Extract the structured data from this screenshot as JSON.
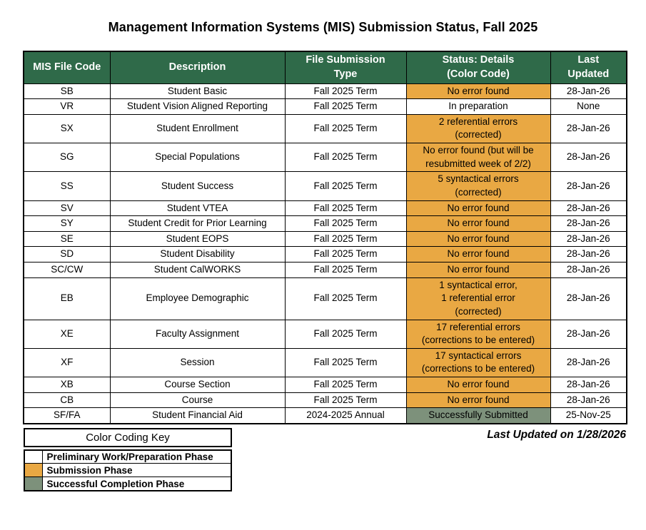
{
  "title": "Management Information Systems (MIS) Submission Status, Fall 2025",
  "colors": {
    "header_green": "#2F6A49",
    "submission_orange": "#E9A843",
    "completion_green": "#7D917B",
    "preparation_white": "#FFFFFF"
  },
  "table": {
    "columns": [
      "MIS File Code",
      "Description",
      "File Submission\nType",
      "Status: Details\n(Color Code)",
      "Last\nUpdated"
    ],
    "rows": [
      {
        "code": "SB",
        "description": "Student Basic",
        "submission_type": "Fall 2025 Term",
        "status": "No error found",
        "status_phase": "submission",
        "last_updated": "28-Jan-26"
      },
      {
        "code": "VR",
        "description": "Student Vision Aligned Reporting",
        "submission_type": "Fall 2025 Term",
        "status": "In preparation",
        "status_phase": "preparation",
        "last_updated": "None"
      },
      {
        "code": "SX",
        "description": "Student Enrollment",
        "submission_type": "Fall 2025 Term",
        "status": "2 referential errors\n(corrected)",
        "status_phase": "submission",
        "last_updated": "28-Jan-26"
      },
      {
        "code": "SG",
        "description": "Special Populations",
        "submission_type": "Fall 2025 Term",
        "status": "No error found (but will be resubmitted week of 2/2)",
        "status_phase": "submission",
        "last_updated": "28-Jan-26"
      },
      {
        "code": "SS",
        "description": "Student Success",
        "submission_type": "Fall 2025 Term",
        "status": "5 syntactical errors\n(corrected)",
        "status_phase": "submission",
        "last_updated": "28-Jan-26"
      },
      {
        "code": "SV",
        "description": "Student VTEA",
        "submission_type": "Fall 2025 Term",
        "status": "No error found",
        "status_phase": "submission",
        "last_updated": "28-Jan-26"
      },
      {
        "code": "SY",
        "description": "Student Credit for Prior Learning",
        "submission_type": "Fall 2025 Term",
        "status": "No error found",
        "status_phase": "submission",
        "last_updated": "28-Jan-26"
      },
      {
        "code": "SE",
        "description": "Student EOPS",
        "submission_type": "Fall 2025 Term",
        "status": "No error found",
        "status_phase": "submission",
        "last_updated": "28-Jan-26"
      },
      {
        "code": "SD",
        "description": "Student Disability",
        "submission_type": "Fall 2025 Term",
        "status": "No error found",
        "status_phase": "submission",
        "last_updated": "28-Jan-26"
      },
      {
        "code": "SC/CW",
        "description": "Student CalWORKS",
        "submission_type": "Fall 2025 Term",
        "status": "No error found",
        "status_phase": "submission",
        "last_updated": "28-Jan-26"
      },
      {
        "code": "EB",
        "description": "Employee Demographic",
        "submission_type": "Fall 2025 Term",
        "status": "1 syntactical error,\n1 referential error\n(corrected)",
        "status_phase": "submission",
        "last_updated": "28-Jan-26"
      },
      {
        "code": "XE",
        "description": "Faculty Assignment",
        "submission_type": "Fall 2025 Term",
        "status": "17 referential errors\n(corrections to be entered)",
        "status_phase": "submission",
        "last_updated": "28-Jan-26"
      },
      {
        "code": "XF",
        "description": "Session",
        "submission_type": "Fall 2025 Term",
        "status": "17 syntactical errors\n(corrections to be entered)",
        "status_phase": "submission",
        "last_updated": "28-Jan-26"
      },
      {
        "code": "XB",
        "description": "Course Section",
        "submission_type": "Fall 2025 Term",
        "status": "No error found",
        "status_phase": "submission",
        "last_updated": "28-Jan-26"
      },
      {
        "code": "CB",
        "description": "Course",
        "submission_type": "Fall 2025 Term",
        "status": "No error found",
        "status_phase": "submission",
        "last_updated": "28-Jan-26"
      },
      {
        "code": "SF/FA",
        "description": "Student Financial Aid",
        "submission_type": "2024-2025 Annual",
        "status": "Successfully Submitted",
        "status_phase": "completion",
        "last_updated": "25-Nov-25"
      }
    ]
  },
  "footer_note": "Last Updated on 1/28/2026",
  "color_key": {
    "title": "Color Coding Key",
    "entries": [
      {
        "label": "Preliminary Work/Preparation Phase",
        "phase": "preparation"
      },
      {
        "label": "Submission Phase",
        "phase": "submission"
      },
      {
        "label": "Successful Completion Phase",
        "phase": "completion"
      }
    ]
  }
}
